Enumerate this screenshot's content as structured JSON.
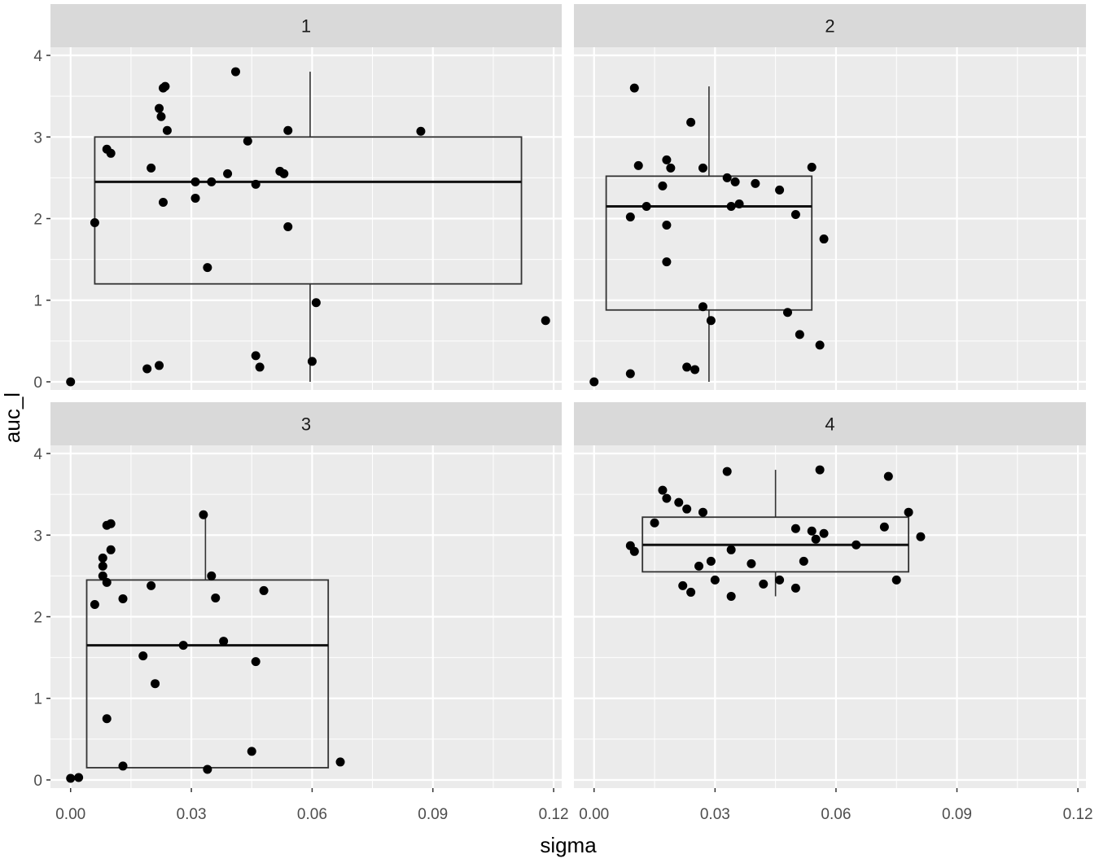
{
  "chart_data": {
    "type": "scatter",
    "layout": "faceted boxplot with jittered points, 2x2 facets",
    "xlabel": "sigma",
    "ylabel": "auc_l",
    "xlim": [
      -0.005,
      0.122
    ],
    "ylim": [
      -0.1,
      4.1
    ],
    "x_ticks": [
      "0.00",
      "0.03",
      "0.06",
      "0.09",
      "0.12"
    ],
    "x_tick_values": [
      0,
      0.03,
      0.06,
      0.09,
      0.12
    ],
    "y_ticks": [
      "0",
      "1",
      "2",
      "3",
      "4"
    ],
    "y_tick_values": [
      0,
      1,
      2,
      3,
      4
    ],
    "grid": true,
    "colors": {
      "panel_bg": "#ebebeb",
      "strip_bg": "#d9d9d9",
      "grid": "#ffffff",
      "point": "#000000",
      "box": "#333333"
    },
    "facets": [
      {
        "label": "1",
        "box": {
          "xmin": 0.006,
          "xmax": 0.112,
          "whisker_x": 0.0595,
          "lower_whisker": 0,
          "q1": 1.2,
          "median": 2.45,
          "q3": 3.0,
          "upper_whisker": 3.8
        },
        "points": [
          [
            0.0,
            0.0
          ],
          [
            0.006,
            1.95
          ],
          [
            0.009,
            2.85
          ],
          [
            0.01,
            2.8
          ],
          [
            0.019,
            0.16
          ],
          [
            0.02,
            2.62
          ],
          [
            0.022,
            0.2
          ],
          [
            0.022,
            3.35
          ],
          [
            0.0225,
            3.25
          ],
          [
            0.023,
            3.6
          ],
          [
            0.023,
            2.2
          ],
          [
            0.0235,
            3.62
          ],
          [
            0.024,
            3.08
          ],
          [
            0.031,
            2.45
          ],
          [
            0.031,
            2.25
          ],
          [
            0.034,
            1.4
          ],
          [
            0.035,
            2.45
          ],
          [
            0.039,
            2.55
          ],
          [
            0.041,
            3.8
          ],
          [
            0.044,
            2.95
          ],
          [
            0.046,
            0.32
          ],
          [
            0.046,
            2.42
          ],
          [
            0.047,
            0.18
          ],
          [
            0.052,
            2.58
          ],
          [
            0.053,
            2.55
          ],
          [
            0.054,
            3.08
          ],
          [
            0.054,
            1.9
          ],
          [
            0.06,
            0.25
          ],
          [
            0.061,
            0.97
          ],
          [
            0.087,
            3.07
          ],
          [
            0.118,
            0.75
          ]
        ]
      },
      {
        "label": "2",
        "box": {
          "xmin": 0.003,
          "xmax": 0.054,
          "whisker_x": 0.0285,
          "lower_whisker": 0,
          "q1": 0.88,
          "median": 2.15,
          "q3": 2.52,
          "upper_whisker": 3.62
        },
        "points": [
          [
            0.0,
            0.0
          ],
          [
            0.009,
            0.1
          ],
          [
            0.009,
            2.02
          ],
          [
            0.01,
            3.6
          ],
          [
            0.011,
            2.65
          ],
          [
            0.013,
            2.15
          ],
          [
            0.017,
            2.4
          ],
          [
            0.018,
            2.72
          ],
          [
            0.018,
            1.92
          ],
          [
            0.018,
            1.47
          ],
          [
            0.019,
            2.62
          ],
          [
            0.023,
            0.18
          ],
          [
            0.024,
            3.18
          ],
          [
            0.025,
            0.15
          ],
          [
            0.027,
            0.92
          ],
          [
            0.027,
            2.62
          ],
          [
            0.029,
            0.75
          ],
          [
            0.033,
            2.5
          ],
          [
            0.034,
            2.15
          ],
          [
            0.035,
            2.45
          ],
          [
            0.036,
            2.18
          ],
          [
            0.04,
            2.43
          ],
          [
            0.046,
            2.35
          ],
          [
            0.048,
            0.85
          ],
          [
            0.05,
            2.05
          ],
          [
            0.051,
            0.58
          ],
          [
            0.054,
            2.63
          ],
          [
            0.056,
            0.45
          ],
          [
            0.057,
            1.75
          ]
        ]
      },
      {
        "label": "3",
        "box": {
          "xmin": 0.004,
          "xmax": 0.064,
          "whisker_x": 0.0335,
          "lower_whisker": 0.15,
          "q1": 0.15,
          "median": 1.65,
          "q3": 2.45,
          "upper_whisker": 3.25
        },
        "points": [
          [
            0.0,
            0.02
          ],
          [
            0.002,
            0.03
          ],
          [
            0.006,
            2.15
          ],
          [
            0.008,
            2.72
          ],
          [
            0.008,
            2.62
          ],
          [
            0.008,
            2.5
          ],
          [
            0.009,
            0.75
          ],
          [
            0.009,
            2.42
          ],
          [
            0.009,
            3.12
          ],
          [
            0.01,
            3.14
          ],
          [
            0.01,
            2.82
          ],
          [
            0.013,
            0.17
          ],
          [
            0.013,
            2.22
          ],
          [
            0.018,
            1.52
          ],
          [
            0.02,
            2.38
          ],
          [
            0.021,
            1.18
          ],
          [
            0.028,
            1.65
          ],
          [
            0.033,
            3.25
          ],
          [
            0.034,
            0.13
          ],
          [
            0.035,
            2.5
          ],
          [
            0.036,
            2.23
          ],
          [
            0.038,
            1.7
          ],
          [
            0.045,
            0.35
          ],
          [
            0.046,
            1.45
          ],
          [
            0.048,
            2.32
          ],
          [
            0.067,
            0.22
          ]
        ]
      },
      {
        "label": "4",
        "box": {
          "xmin": 0.012,
          "xmax": 0.078,
          "whisker_x": 0.045,
          "lower_whisker": 2.25,
          "q1": 2.55,
          "median": 2.88,
          "q3": 3.22,
          "upper_whisker": 3.8
        },
        "points": [
          [
            0.009,
            2.87
          ],
          [
            0.01,
            2.8
          ],
          [
            0.015,
            3.15
          ],
          [
            0.017,
            3.55
          ],
          [
            0.018,
            3.45
          ],
          [
            0.021,
            3.4
          ],
          [
            0.022,
            2.38
          ],
          [
            0.023,
            3.32
          ],
          [
            0.024,
            2.3
          ],
          [
            0.026,
            2.62
          ],
          [
            0.027,
            3.28
          ],
          [
            0.029,
            2.68
          ],
          [
            0.03,
            2.45
          ],
          [
            0.033,
            3.78
          ],
          [
            0.034,
            2.25
          ],
          [
            0.034,
            2.82
          ],
          [
            0.039,
            2.65
          ],
          [
            0.042,
            2.4
          ],
          [
            0.046,
            2.45
          ],
          [
            0.05,
            2.35
          ],
          [
            0.05,
            3.08
          ],
          [
            0.052,
            2.68
          ],
          [
            0.054,
            3.05
          ],
          [
            0.055,
            2.95
          ],
          [
            0.056,
            3.8
          ],
          [
            0.057,
            3.02
          ],
          [
            0.065,
            2.88
          ],
          [
            0.072,
            3.1
          ],
          [
            0.073,
            3.72
          ],
          [
            0.075,
            2.45
          ],
          [
            0.078,
            3.28
          ],
          [
            0.081,
            2.98
          ]
        ]
      }
    ]
  }
}
